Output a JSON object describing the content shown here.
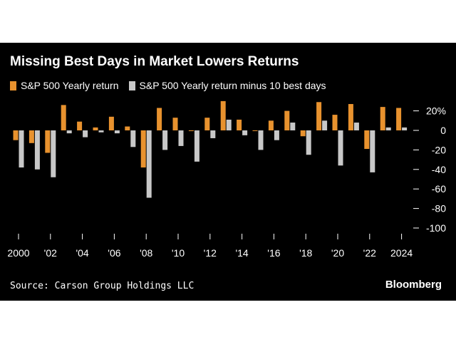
{
  "chart_data": {
    "type": "bar",
    "title": "Missing Best Days in Market Lowers Returns",
    "legend_position": "top-left",
    "series": [
      {
        "name": "S&P 500 Yearly return",
        "color": "#e8922e",
        "values": [
          -10,
          -13,
          -23,
          26,
          9,
          3,
          14,
          4,
          -38,
          23,
          13,
          0,
          13,
          30,
          11,
          0,
          10,
          20,
          -6,
          29,
          16,
          27,
          -19,
          24,
          23
        ]
      },
      {
        "name": "S&P 500 Yearly return minus 10 best days",
        "color": "#c8c8c8",
        "values": [
          -38,
          -40,
          -48,
          -3,
          -7,
          -2,
          -3,
          -17,
          -69,
          -20,
          -16,
          -32,
          -8,
          11,
          -5,
          -20,
          -10,
          8,
          -25,
          10,
          -36,
          8,
          -43,
          3,
          3
        ]
      }
    ],
    "years": [
      2000,
      2001,
      2002,
      2003,
      2004,
      2005,
      2006,
      2007,
      2008,
      2009,
      2010,
      2011,
      2012,
      2013,
      2014,
      2015,
      2016,
      2017,
      2018,
      2019,
      2020,
      2021,
      2022,
      2023,
      2024
    ],
    "x_tick_labels": [
      "2000",
      "'02",
      "'04",
      "'06",
      "'08",
      "'10",
      "'12",
      "'14",
      "'16",
      "'18",
      "'20",
      "'22",
      "2024"
    ],
    "y_ticks": [
      20,
      0,
      -20,
      -40,
      -60,
      -80,
      -100
    ],
    "y_tick_labels": [
      "20%",
      "0",
      "-20",
      "-40",
      "-60",
      "-80",
      "-100"
    ],
    "ylim": [
      -100,
      20
    ],
    "grid": false
  },
  "source": "Source: Carson Group Holdings LLC",
  "brand": "Bloomberg"
}
